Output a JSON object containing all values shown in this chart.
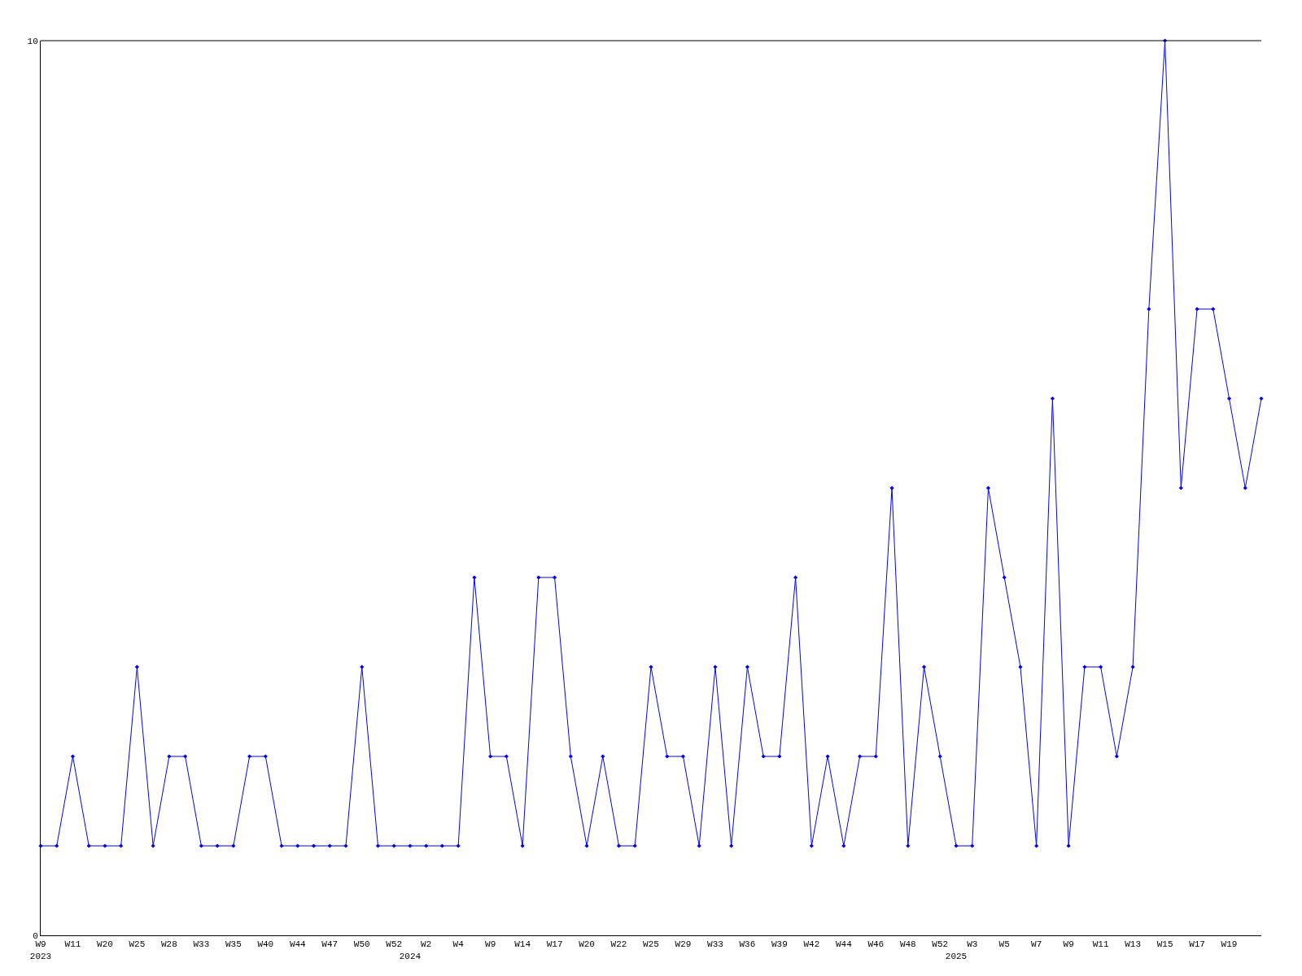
{
  "chart_data": {
    "type": "line",
    "categories": [
      "W9\n2023",
      null,
      "W11",
      null,
      "W20",
      null,
      "W25",
      null,
      "W28",
      null,
      "W33",
      null,
      "W35",
      null,
      "W40",
      null,
      "W44",
      null,
      "W47",
      null,
      "W50",
      null,
      "W52",
      "\n2024",
      "W2",
      null,
      "W4",
      null,
      "W9",
      null,
      "W14",
      null,
      "W17",
      null,
      "W20",
      null,
      "W22",
      null,
      "W25",
      null,
      "W29",
      null,
      "W33",
      null,
      "W36",
      null,
      "W39",
      null,
      "W42",
      null,
      "W44",
      null,
      "W46",
      null,
      "W48",
      null,
      "W52",
      "\n2025",
      "W3",
      null,
      "W5",
      null,
      "W7",
      null,
      "W9",
      null,
      "W11",
      null,
      "W13",
      null,
      "W15",
      null,
      "W17",
      null,
      "W19",
      null,
      null
    ],
    "series": [
      {
        "color": "#0000ff",
        "values": [
          1,
          1,
          2,
          1,
          1,
          1,
          3,
          1,
          2,
          2,
          1,
          1,
          1,
          2,
          2,
          1,
          1,
          1,
          1,
          1,
          3,
          1,
          1,
          1,
          1,
          1,
          1,
          4,
          2,
          2,
          1,
          4,
          4,
          2,
          1,
          2,
          1,
          1,
          3,
          2,
          2,
          1,
          3,
          1,
          3,
          2,
          2,
          4,
          1,
          2,
          1,
          2,
          2,
          5,
          1,
          3,
          2,
          1,
          1,
          5,
          4,
          3,
          1,
          6,
          1,
          3,
          3,
          2,
          3,
          7,
          10,
          5,
          7,
          7,
          6,
          5,
          6
        ]
      }
    ],
    "ylim": [
      0,
      10
    ],
    "yticks": [
      0,
      10
    ],
    "marker": "diamond",
    "line_style": "solid"
  }
}
